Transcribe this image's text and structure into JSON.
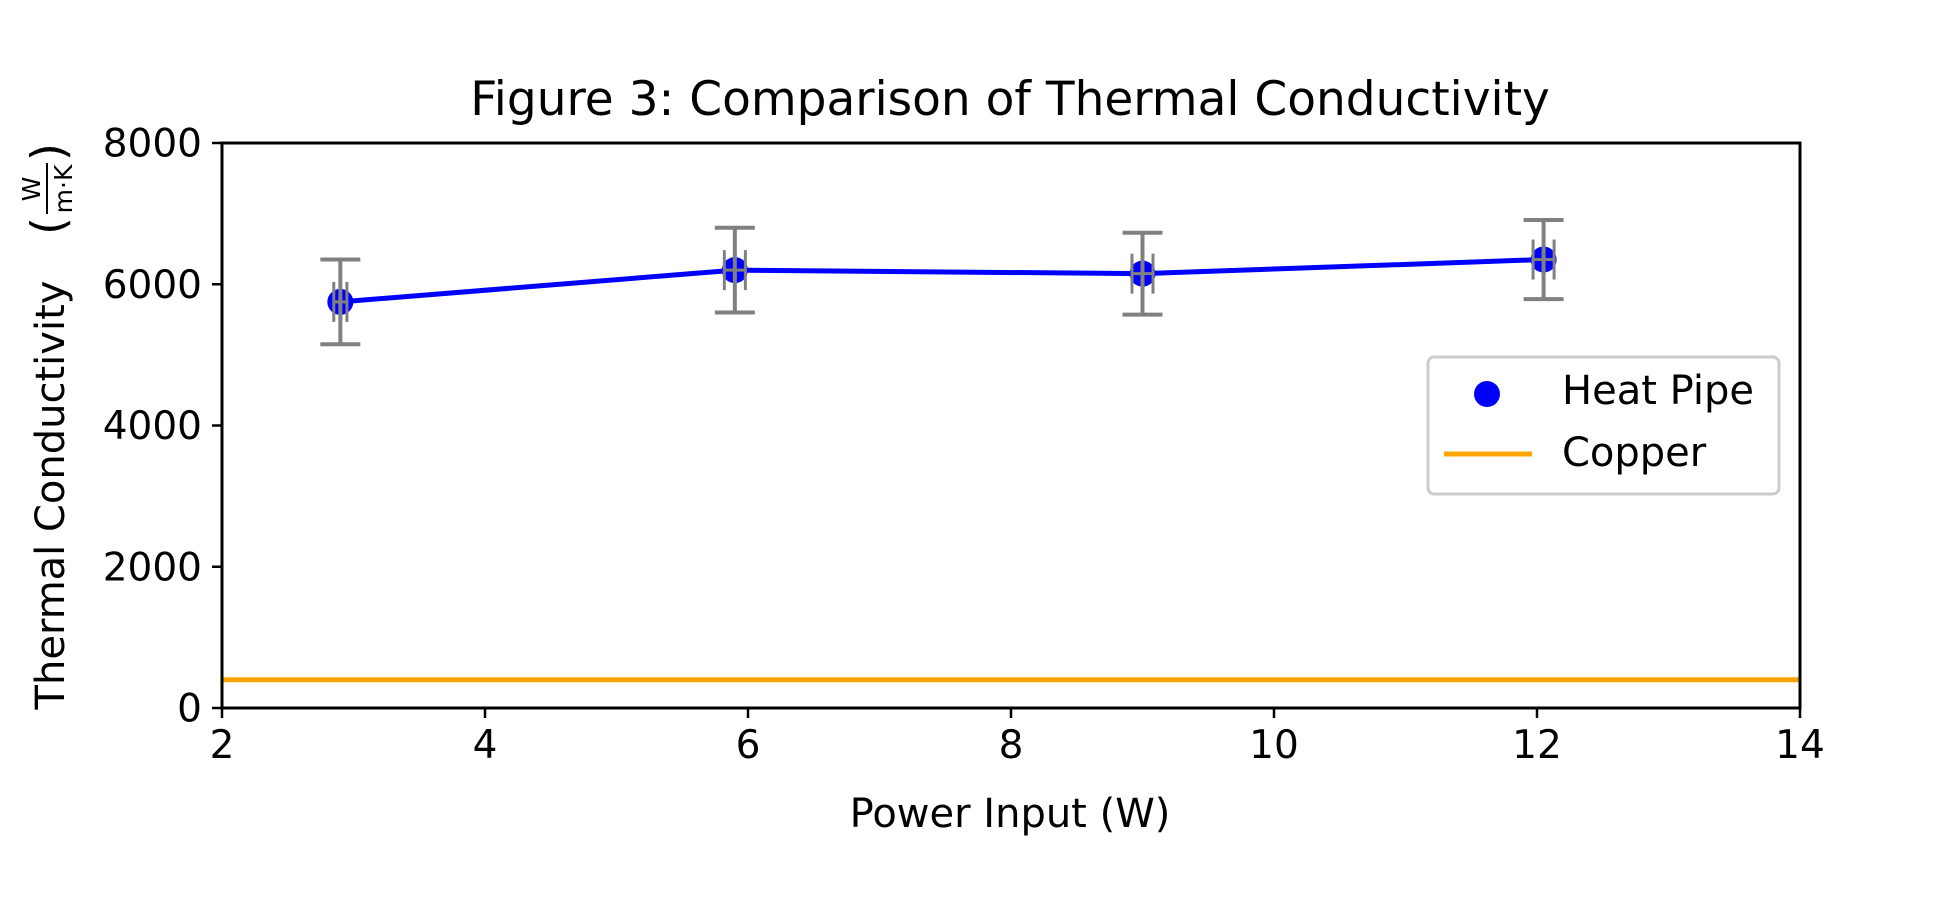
{
  "chart_data": {
    "type": "line",
    "title": "Figure 3: Comparison of Thermal Conductivity",
    "xlabel": "Power Input (W)",
    "ylabel": "Thermal Conductivity",
    "ylabel_unit_num": "W",
    "ylabel_unit_den": "m·K",
    "xlim": [
      2,
      14
    ],
    "ylim": [
      0,
      8000
    ],
    "xticks": [
      2,
      4,
      6,
      8,
      10,
      12,
      14
    ],
    "yticks": [
      0,
      2000,
      4000,
      6000,
      8000
    ],
    "grid": false,
    "legend_position": "center-right",
    "series": [
      {
        "name": "Heat Pipe",
        "color": "#0000ff",
        "marker": "circle",
        "points": [
          {
            "x": 2.9,
            "y": 5750,
            "yerr": 600,
            "xerr": 0.05
          },
          {
            "x": 5.9,
            "y": 6200,
            "yerr": 600,
            "xerr": 0.08
          },
          {
            "x": 9.0,
            "y": 6150,
            "yerr": 580,
            "xerr": 0.08
          },
          {
            "x": 12.05,
            "y": 6350,
            "yerr": 560,
            "xerr": 0.08
          }
        ],
        "errorbar_color": "#808080"
      },
      {
        "name": "Copper",
        "color": "#ffa500",
        "y_constant": 400
      }
    ]
  }
}
